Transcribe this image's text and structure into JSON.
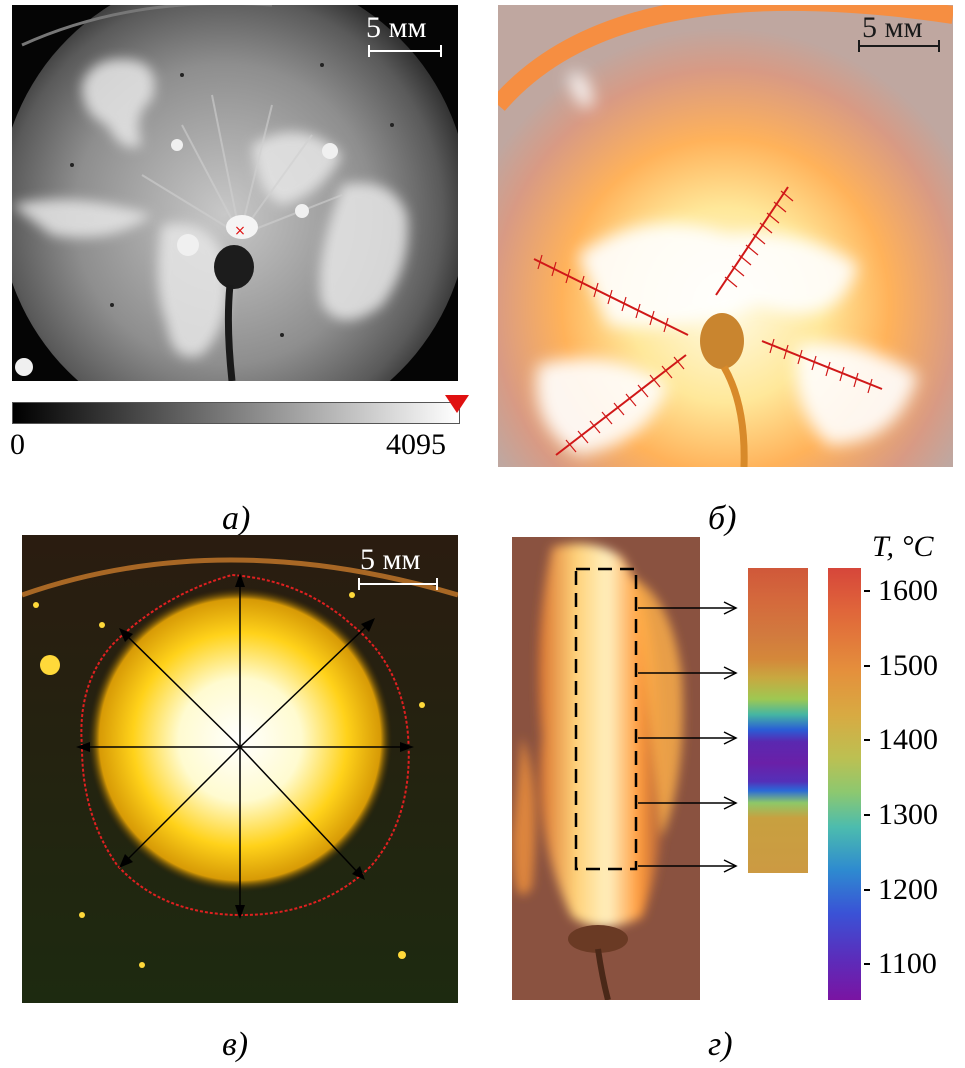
{
  "panels": {
    "a": {
      "caption": "а)",
      "scale_label": "5 мм",
      "colorbar_min": "0",
      "colorbar_max": "4095"
    },
    "b": {
      "caption": "б)",
      "scale_label": "5 мм"
    },
    "v": {
      "caption": "в)",
      "scale_label": "5 мм"
    },
    "g": {
      "caption": "г)",
      "colorbar_title": "T, °C",
      "colorbar_ticks": [
        "1600",
        "1500",
        "1400",
        "1300",
        "1200",
        "1100"
      ]
    }
  },
  "colors": {
    "marker_red": "#e01010",
    "boundary_red": "#e02020",
    "arrow_black": "#000000"
  }
}
